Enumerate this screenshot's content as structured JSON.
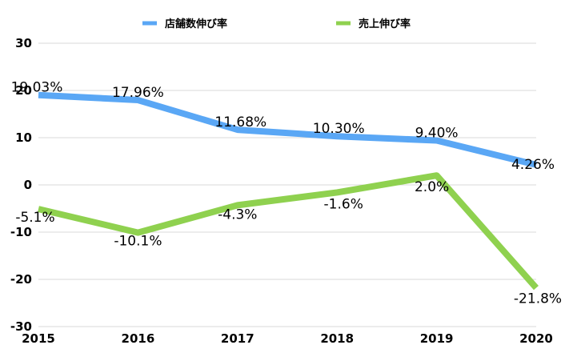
{
  "chart_data": {
    "type": "line",
    "x": [
      "2015",
      "2016",
      "2017",
      "2018",
      "2019",
      "2020"
    ],
    "ylim": [
      -30,
      30
    ],
    "yticks": [
      "30",
      "20",
      "10",
      "0",
      "-10",
      "-20",
      "-30"
    ],
    "ytick_values": [
      30,
      20,
      10,
      0,
      -10,
      -20,
      -30
    ],
    "grid": true,
    "legend_position": "top-center",
    "series": [
      {
        "name": "店舗数伸び率",
        "color": "#5aa7f5",
        "values": [
          19.03,
          17.96,
          11.68,
          10.3,
          9.4,
          4.26
        ],
        "labels": [
          "19.03%",
          "17.96%",
          "11.68%",
          "10.30%",
          "9.40%",
          "4.26%"
        ]
      },
      {
        "name": "売上伸び率",
        "color": "#8fd14f",
        "values": [
          -5.1,
          -10.1,
          -4.3,
          -1.6,
          2.0,
          -21.8
        ],
        "labels": [
          "-5.1%",
          "-10.1%",
          "-4.3%",
          "-1.6%",
          "2.0%",
          "-21.8%"
        ]
      }
    ]
  }
}
